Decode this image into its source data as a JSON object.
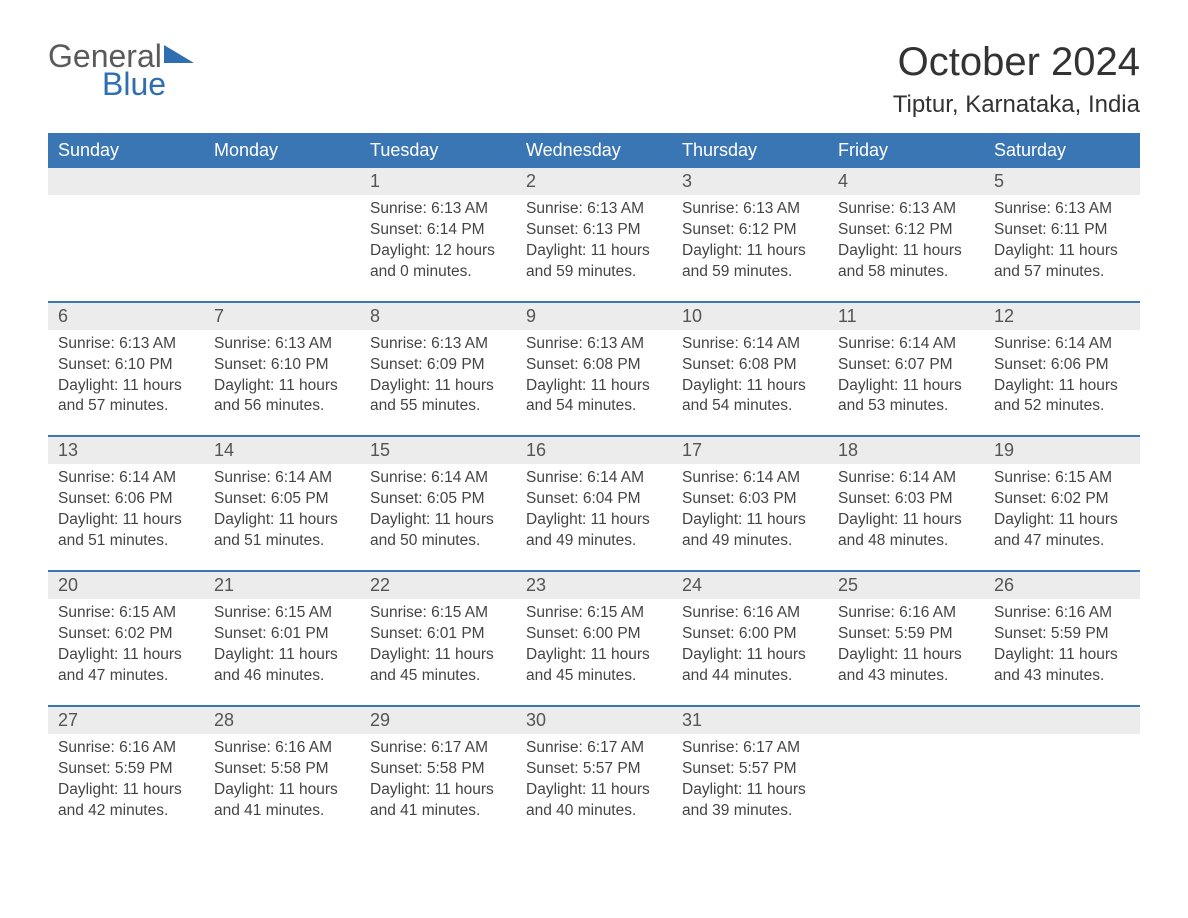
{
  "brand": {
    "line1": "General",
    "line2": "Blue",
    "flag_color": "#2f6fb0",
    "text1_color": "#5a5a5a"
  },
  "title": "October 2024",
  "location": "Tiptur, Karnataka, India",
  "colors": {
    "header_bg": "#3a76b3",
    "header_text": "#ffffff",
    "daynum_bg": "#ececec",
    "body_text": "#444444",
    "rule": "#3a76b3",
    "page_bg": "#ffffff"
  },
  "fonts": {
    "title_size": 40,
    "location_size": 24,
    "dow_size": 18,
    "daynum_size": 18,
    "detail_size": 15.5
  },
  "days_of_week": [
    "Sunday",
    "Monday",
    "Tuesday",
    "Wednesday",
    "Thursday",
    "Friday",
    "Saturday"
  ],
  "labels": {
    "sunrise": "Sunrise:",
    "sunset": "Sunset:",
    "daylight": "Daylight:"
  },
  "weeks": [
    [
      {
        "n": "",
        "sr": "",
        "ss": "",
        "dl": ""
      },
      {
        "n": "",
        "sr": "",
        "ss": "",
        "dl": ""
      },
      {
        "n": "1",
        "sr": "6:13 AM",
        "ss": "6:14 PM",
        "dl": "12 hours and 0 minutes."
      },
      {
        "n": "2",
        "sr": "6:13 AM",
        "ss": "6:13 PM",
        "dl": "11 hours and 59 minutes."
      },
      {
        "n": "3",
        "sr": "6:13 AM",
        "ss": "6:12 PM",
        "dl": "11 hours and 59 minutes."
      },
      {
        "n": "4",
        "sr": "6:13 AM",
        "ss": "6:12 PM",
        "dl": "11 hours and 58 minutes."
      },
      {
        "n": "5",
        "sr": "6:13 AM",
        "ss": "6:11 PM",
        "dl": "11 hours and 57 minutes."
      }
    ],
    [
      {
        "n": "6",
        "sr": "6:13 AM",
        "ss": "6:10 PM",
        "dl": "11 hours and 57 minutes."
      },
      {
        "n": "7",
        "sr": "6:13 AM",
        "ss": "6:10 PM",
        "dl": "11 hours and 56 minutes."
      },
      {
        "n": "8",
        "sr": "6:13 AM",
        "ss": "6:09 PM",
        "dl": "11 hours and 55 minutes."
      },
      {
        "n": "9",
        "sr": "6:13 AM",
        "ss": "6:08 PM",
        "dl": "11 hours and 54 minutes."
      },
      {
        "n": "10",
        "sr": "6:14 AM",
        "ss": "6:08 PM",
        "dl": "11 hours and 54 minutes."
      },
      {
        "n": "11",
        "sr": "6:14 AM",
        "ss": "6:07 PM",
        "dl": "11 hours and 53 minutes."
      },
      {
        "n": "12",
        "sr": "6:14 AM",
        "ss": "6:06 PM",
        "dl": "11 hours and 52 minutes."
      }
    ],
    [
      {
        "n": "13",
        "sr": "6:14 AM",
        "ss": "6:06 PM",
        "dl": "11 hours and 51 minutes."
      },
      {
        "n": "14",
        "sr": "6:14 AM",
        "ss": "6:05 PM",
        "dl": "11 hours and 51 minutes."
      },
      {
        "n": "15",
        "sr": "6:14 AM",
        "ss": "6:05 PM",
        "dl": "11 hours and 50 minutes."
      },
      {
        "n": "16",
        "sr": "6:14 AM",
        "ss": "6:04 PM",
        "dl": "11 hours and 49 minutes."
      },
      {
        "n": "17",
        "sr": "6:14 AM",
        "ss": "6:03 PM",
        "dl": "11 hours and 49 minutes."
      },
      {
        "n": "18",
        "sr": "6:14 AM",
        "ss": "6:03 PM",
        "dl": "11 hours and 48 minutes."
      },
      {
        "n": "19",
        "sr": "6:15 AM",
        "ss": "6:02 PM",
        "dl": "11 hours and 47 minutes."
      }
    ],
    [
      {
        "n": "20",
        "sr": "6:15 AM",
        "ss": "6:02 PM",
        "dl": "11 hours and 47 minutes."
      },
      {
        "n": "21",
        "sr": "6:15 AM",
        "ss": "6:01 PM",
        "dl": "11 hours and 46 minutes."
      },
      {
        "n": "22",
        "sr": "6:15 AM",
        "ss": "6:01 PM",
        "dl": "11 hours and 45 minutes."
      },
      {
        "n": "23",
        "sr": "6:15 AM",
        "ss": "6:00 PM",
        "dl": "11 hours and 45 minutes."
      },
      {
        "n": "24",
        "sr": "6:16 AM",
        "ss": "6:00 PM",
        "dl": "11 hours and 44 minutes."
      },
      {
        "n": "25",
        "sr": "6:16 AM",
        "ss": "5:59 PM",
        "dl": "11 hours and 43 minutes."
      },
      {
        "n": "26",
        "sr": "6:16 AM",
        "ss": "5:59 PM",
        "dl": "11 hours and 43 minutes."
      }
    ],
    [
      {
        "n": "27",
        "sr": "6:16 AM",
        "ss": "5:59 PM",
        "dl": "11 hours and 42 minutes."
      },
      {
        "n": "28",
        "sr": "6:16 AM",
        "ss": "5:58 PM",
        "dl": "11 hours and 41 minutes."
      },
      {
        "n": "29",
        "sr": "6:17 AM",
        "ss": "5:58 PM",
        "dl": "11 hours and 41 minutes."
      },
      {
        "n": "30",
        "sr": "6:17 AM",
        "ss": "5:57 PM",
        "dl": "11 hours and 40 minutes."
      },
      {
        "n": "31",
        "sr": "6:17 AM",
        "ss": "5:57 PM",
        "dl": "11 hours and 39 minutes."
      },
      {
        "n": "",
        "sr": "",
        "ss": "",
        "dl": ""
      },
      {
        "n": "",
        "sr": "",
        "ss": "",
        "dl": ""
      }
    ]
  ]
}
